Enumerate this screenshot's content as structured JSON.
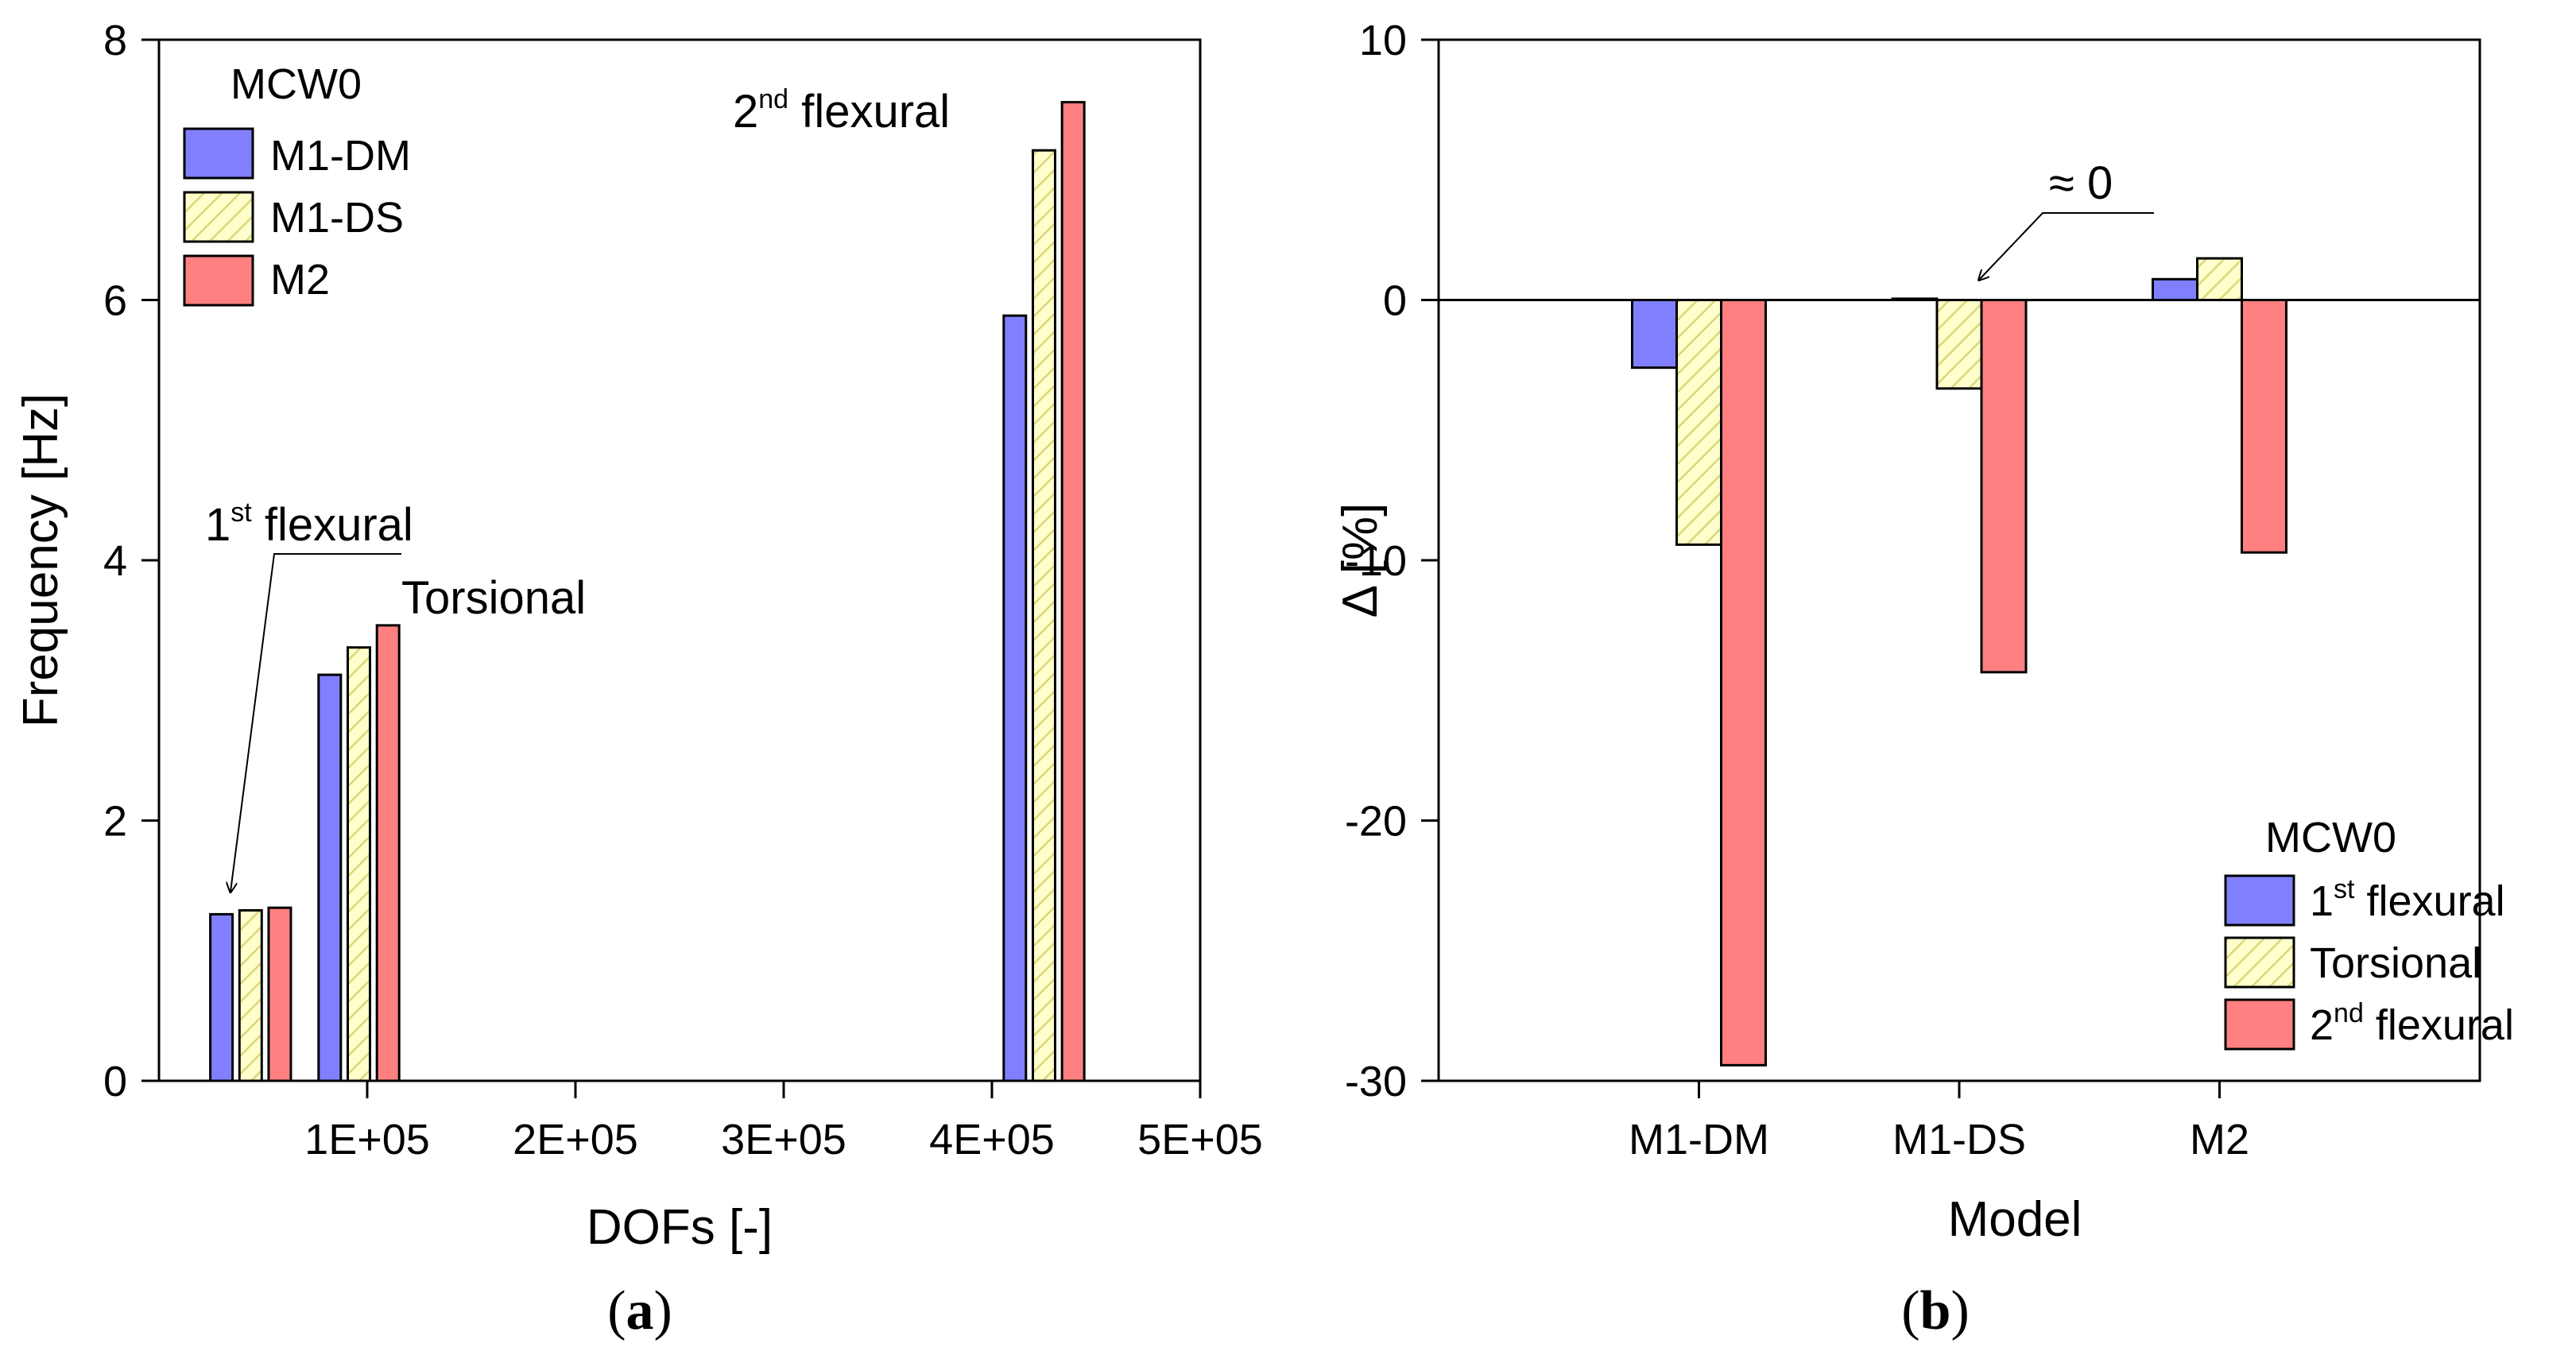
{
  "colors": {
    "series1": "#8080ff",
    "series2": "#ffffcc",
    "series2_hatch": "#d8d87a",
    "series3": "#ff8080",
    "axis": "#000000"
  },
  "chart_data": [
    {
      "panel_label": "a",
      "type": "bar",
      "xlabel": "DOFs  [-]",
      "ylabel": "Frequency  [Hz]",
      "xlim": [
        0,
        500000
      ],
      "ylim": [
        0,
        8
      ],
      "x_ticks": [
        100000,
        200000,
        300000,
        400000,
        500000
      ],
      "x_tick_labels": [
        "1E+05",
        "2E+05",
        "3E+05",
        "4E+05",
        "5E+05"
      ],
      "y_ticks": [
        0,
        2,
        4,
        6,
        8
      ],
      "y_tick_labels": [
        "0",
        "2",
        "4",
        "6",
        "8"
      ],
      "legend_title": "MCW0",
      "legend_position": "top-left",
      "series": [
        {
          "name": "M1-DM",
          "color_key": "series1",
          "x": [
            30000,
            82000,
            411000
          ],
          "values": [
            1.28,
            3.12,
            5.88
          ]
        },
        {
          "name": "M1-DS",
          "color_key": "series2",
          "x": [
            44000,
            96000,
            425000
          ],
          "values": [
            1.31,
            3.33,
            7.15
          ]
        },
        {
          "name": "M2",
          "color_key": "series3",
          "x": [
            58000,
            110000,
            439000
          ],
          "values": [
            1.33,
            3.5,
            7.52
          ]
        }
      ],
      "annotations": [
        {
          "base": "1",
          "sup": "st",
          "rest": " flexural"
        },
        {
          "base": "Torsional",
          "sup": "",
          "rest": ""
        },
        {
          "base": "2",
          "sup": "nd",
          "rest": " flexural"
        }
      ]
    },
    {
      "panel_label": "b",
      "type": "bar",
      "xlabel": "Model",
      "ylabel": "Δ  [%]",
      "categories": [
        "M1-DM",
        "M1-DS",
        "M2"
      ],
      "ylim": [
        -30,
        10
      ],
      "y_ticks": [
        -30,
        -20,
        -10,
        0,
        10
      ],
      "y_tick_labels": [
        "-30",
        "-20",
        "-10",
        "0",
        "10"
      ],
      "legend_title": "MCW0",
      "legend_position": "bottom-right",
      "series": [
        {
          "name_base": "1",
          "name_sup": "st",
          "name_rest": " flexural",
          "color_key": "series1",
          "values": [
            -2.6,
            0.05,
            0.8
          ]
        },
        {
          "name_base": "Torsional",
          "name_sup": "",
          "name_rest": "",
          "color_key": "series2",
          "values": [
            -9.4,
            -3.4,
            1.6
          ]
        },
        {
          "name_base": "2",
          "name_sup": "nd",
          "name_rest": " flexural",
          "color_key": "series3",
          "values": [
            -29.4,
            -14.3,
            -9.7
          ]
        }
      ],
      "annotations": [
        {
          "text": "≈ 0"
        }
      ]
    }
  ]
}
